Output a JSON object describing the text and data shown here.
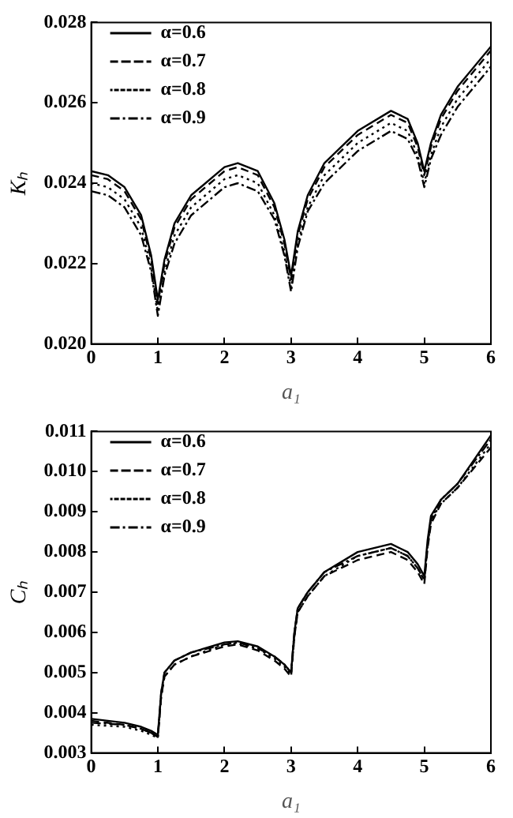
{
  "chart_data": [
    {
      "type": "line",
      "xlabel": "a₁",
      "ylabel": "Kₕ",
      "x": [
        0,
        0.25,
        0.5,
        0.75,
        0.9,
        1,
        1.1,
        1.25,
        1.5,
        2,
        2.2,
        2.5,
        2.75,
        2.9,
        3,
        3.1,
        3.25,
        3.5,
        4,
        4.5,
        4.75,
        4.9,
        5,
        5.1,
        5.25,
        5.5,
        6
      ],
      "xlim": [
        0,
        6
      ],
      "xticks": [
        0,
        1,
        2,
        3,
        4,
        5,
        6
      ],
      "ylim": [
        0.02,
        0.028
      ],
      "yticks": [
        {
          "value": 0.02,
          "label": "0.020"
        },
        {
          "value": 0.022,
          "label": "0.022"
        },
        {
          "value": 0.024,
          "label": "0.024"
        },
        {
          "value": 0.026,
          "label": "0.026"
        },
        {
          "value": 0.028,
          "label": "0.028"
        }
      ],
      "grid": false,
      "legend": "top left",
      "marker": "none",
      "series": [
        {
          "name": "α=0.6",
          "color": "#000000",
          "line_style": "solid",
          "values": [
            0.0243,
            0.0242,
            0.0239,
            0.0232,
            0.0222,
            0.0211,
            0.0221,
            0.023,
            0.0237,
            0.0244,
            0.0245,
            0.0243,
            0.0235,
            0.0226,
            0.0217,
            0.0228,
            0.0237,
            0.0245,
            0.0253,
            0.0258,
            0.0256,
            0.025,
            0.0243,
            0.025,
            0.0257,
            0.0264,
            0.0274
          ]
        },
        {
          "name": "α=0.7",
          "color": "#000000",
          "line_style": "dashed",
          "values": [
            0.0242,
            0.0241,
            0.0238,
            0.0231,
            0.0221,
            0.021,
            0.022,
            0.0229,
            0.0236,
            0.0243,
            0.0244,
            0.0242,
            0.0234,
            0.0225,
            0.0216,
            0.0227,
            0.0236,
            0.0244,
            0.0252,
            0.0257,
            0.0255,
            0.0249,
            0.0242,
            0.0249,
            0.0256,
            0.0263,
            0.0273
          ]
        },
        {
          "name": "α=0.8",
          "color": "#000000",
          "line_style": "dotted",
          "values": [
            0.024,
            0.0239,
            0.0236,
            0.0229,
            0.0219,
            0.0208,
            0.0218,
            0.0227,
            0.0234,
            0.0241,
            0.0242,
            0.024,
            0.0232,
            0.0223,
            0.0214,
            0.0225,
            0.0234,
            0.0242,
            0.025,
            0.0255,
            0.0253,
            0.0247,
            0.024,
            0.0247,
            0.0254,
            0.0261,
            0.0271
          ]
        },
        {
          "name": "α=0.9",
          "color": "#000000",
          "line_style": "dashdot",
          "values": [
            0.0238,
            0.0237,
            0.0234,
            0.0227,
            0.0218,
            0.0207,
            0.0217,
            0.0225,
            0.0232,
            0.0239,
            0.024,
            0.0238,
            0.0231,
            0.0222,
            0.0213,
            0.0224,
            0.0233,
            0.024,
            0.0248,
            0.0253,
            0.0251,
            0.0246,
            0.0239,
            0.0246,
            0.0252,
            0.0259,
            0.0269
          ]
        }
      ]
    },
    {
      "type": "line",
      "xlabel": "a₁",
      "ylabel": "Cₕ",
      "x": [
        0,
        0.5,
        0.75,
        0.9,
        1,
        1.05,
        1.1,
        1.25,
        1.5,
        2,
        2.2,
        2.5,
        2.75,
        2.9,
        3,
        3.05,
        3.1,
        3.25,
        3.5,
        4,
        4.5,
        4.75,
        4.9,
        5,
        5.05,
        5.1,
        5.25,
        5.5,
        6
      ],
      "xlim": [
        0,
        6
      ],
      "xticks": [
        0,
        1,
        2,
        3,
        4,
        5,
        6
      ],
      "ylim": [
        0.003,
        0.011
      ],
      "yticks": [
        {
          "value": 0.003,
          "label": "0.003"
        },
        {
          "value": 0.004,
          "label": "0.004"
        },
        {
          "value": 0.005,
          "label": "0.005"
        },
        {
          "value": 0.006,
          "label": "0.006"
        },
        {
          "value": 0.007,
          "label": "0.007"
        },
        {
          "value": 0.008,
          "label": "0.008"
        },
        {
          "value": 0.009,
          "label": "0.009"
        },
        {
          "value": 0.01,
          "label": "0.010"
        },
        {
          "value": 0.011,
          "label": "0.011"
        }
      ],
      "grid": false,
      "legend": "top left",
      "marker": "none",
      "series": [
        {
          "name": "α=0.6",
          "color": "#000000",
          "line_style": "solid",
          "values": [
            0.00385,
            0.00375,
            0.00365,
            0.00355,
            0.00345,
            0.0045,
            0.005,
            0.0053,
            0.0055,
            0.00575,
            0.00578,
            0.00565,
            0.0054,
            0.0052,
            0.005,
            0.006,
            0.0066,
            0.007,
            0.0075,
            0.008,
            0.0082,
            0.008,
            0.0077,
            0.0074,
            0.0083,
            0.0089,
            0.0093,
            0.0097,
            0.0109
          ]
        },
        {
          "name": "α=0.7",
          "color": "#000000",
          "line_style": "dashed",
          "values": [
            0.0038,
            0.0037,
            0.0036,
            0.0035,
            0.0034,
            0.0044,
            0.0049,
            0.0052,
            0.0054,
            0.00565,
            0.0057,
            0.00555,
            0.0053,
            0.0051,
            0.0049,
            0.0059,
            0.0065,
            0.0069,
            0.0074,
            0.0078,
            0.008,
            0.0078,
            0.0075,
            0.0072,
            0.0081,
            0.0087,
            0.0092,
            0.0096,
            0.0106
          ]
        },
        {
          "name": "α=0.8",
          "color": "#000000",
          "line_style": "dotted",
          "values": [
            0.0037,
            0.00365,
            0.00355,
            0.00345,
            0.00338,
            0.0044,
            0.0049,
            0.0052,
            0.0054,
            0.0057,
            0.00572,
            0.0056,
            0.00535,
            0.00515,
            0.00495,
            0.0059,
            0.0065,
            0.0069,
            0.0074,
            0.0079,
            0.0081,
            0.0079,
            0.0076,
            0.0073,
            0.0082,
            0.0088,
            0.0092,
            0.0096,
            0.0107
          ]
        },
        {
          "name": "α=0.9",
          "color": "#000000",
          "line_style": "dashdot",
          "values": [
            0.00375,
            0.0037,
            0.0036,
            0.0035,
            0.0034,
            0.0045,
            0.005,
            0.0053,
            0.0055,
            0.0057,
            0.00575,
            0.0056,
            0.0054,
            0.0052,
            0.005,
            0.006,
            0.0066,
            0.007,
            0.0075,
            0.0079,
            0.0081,
            0.0079,
            0.0076,
            0.0073,
            0.0082,
            0.0088,
            0.0093,
            0.0097,
            0.0108
          ]
        }
      ]
    }
  ]
}
